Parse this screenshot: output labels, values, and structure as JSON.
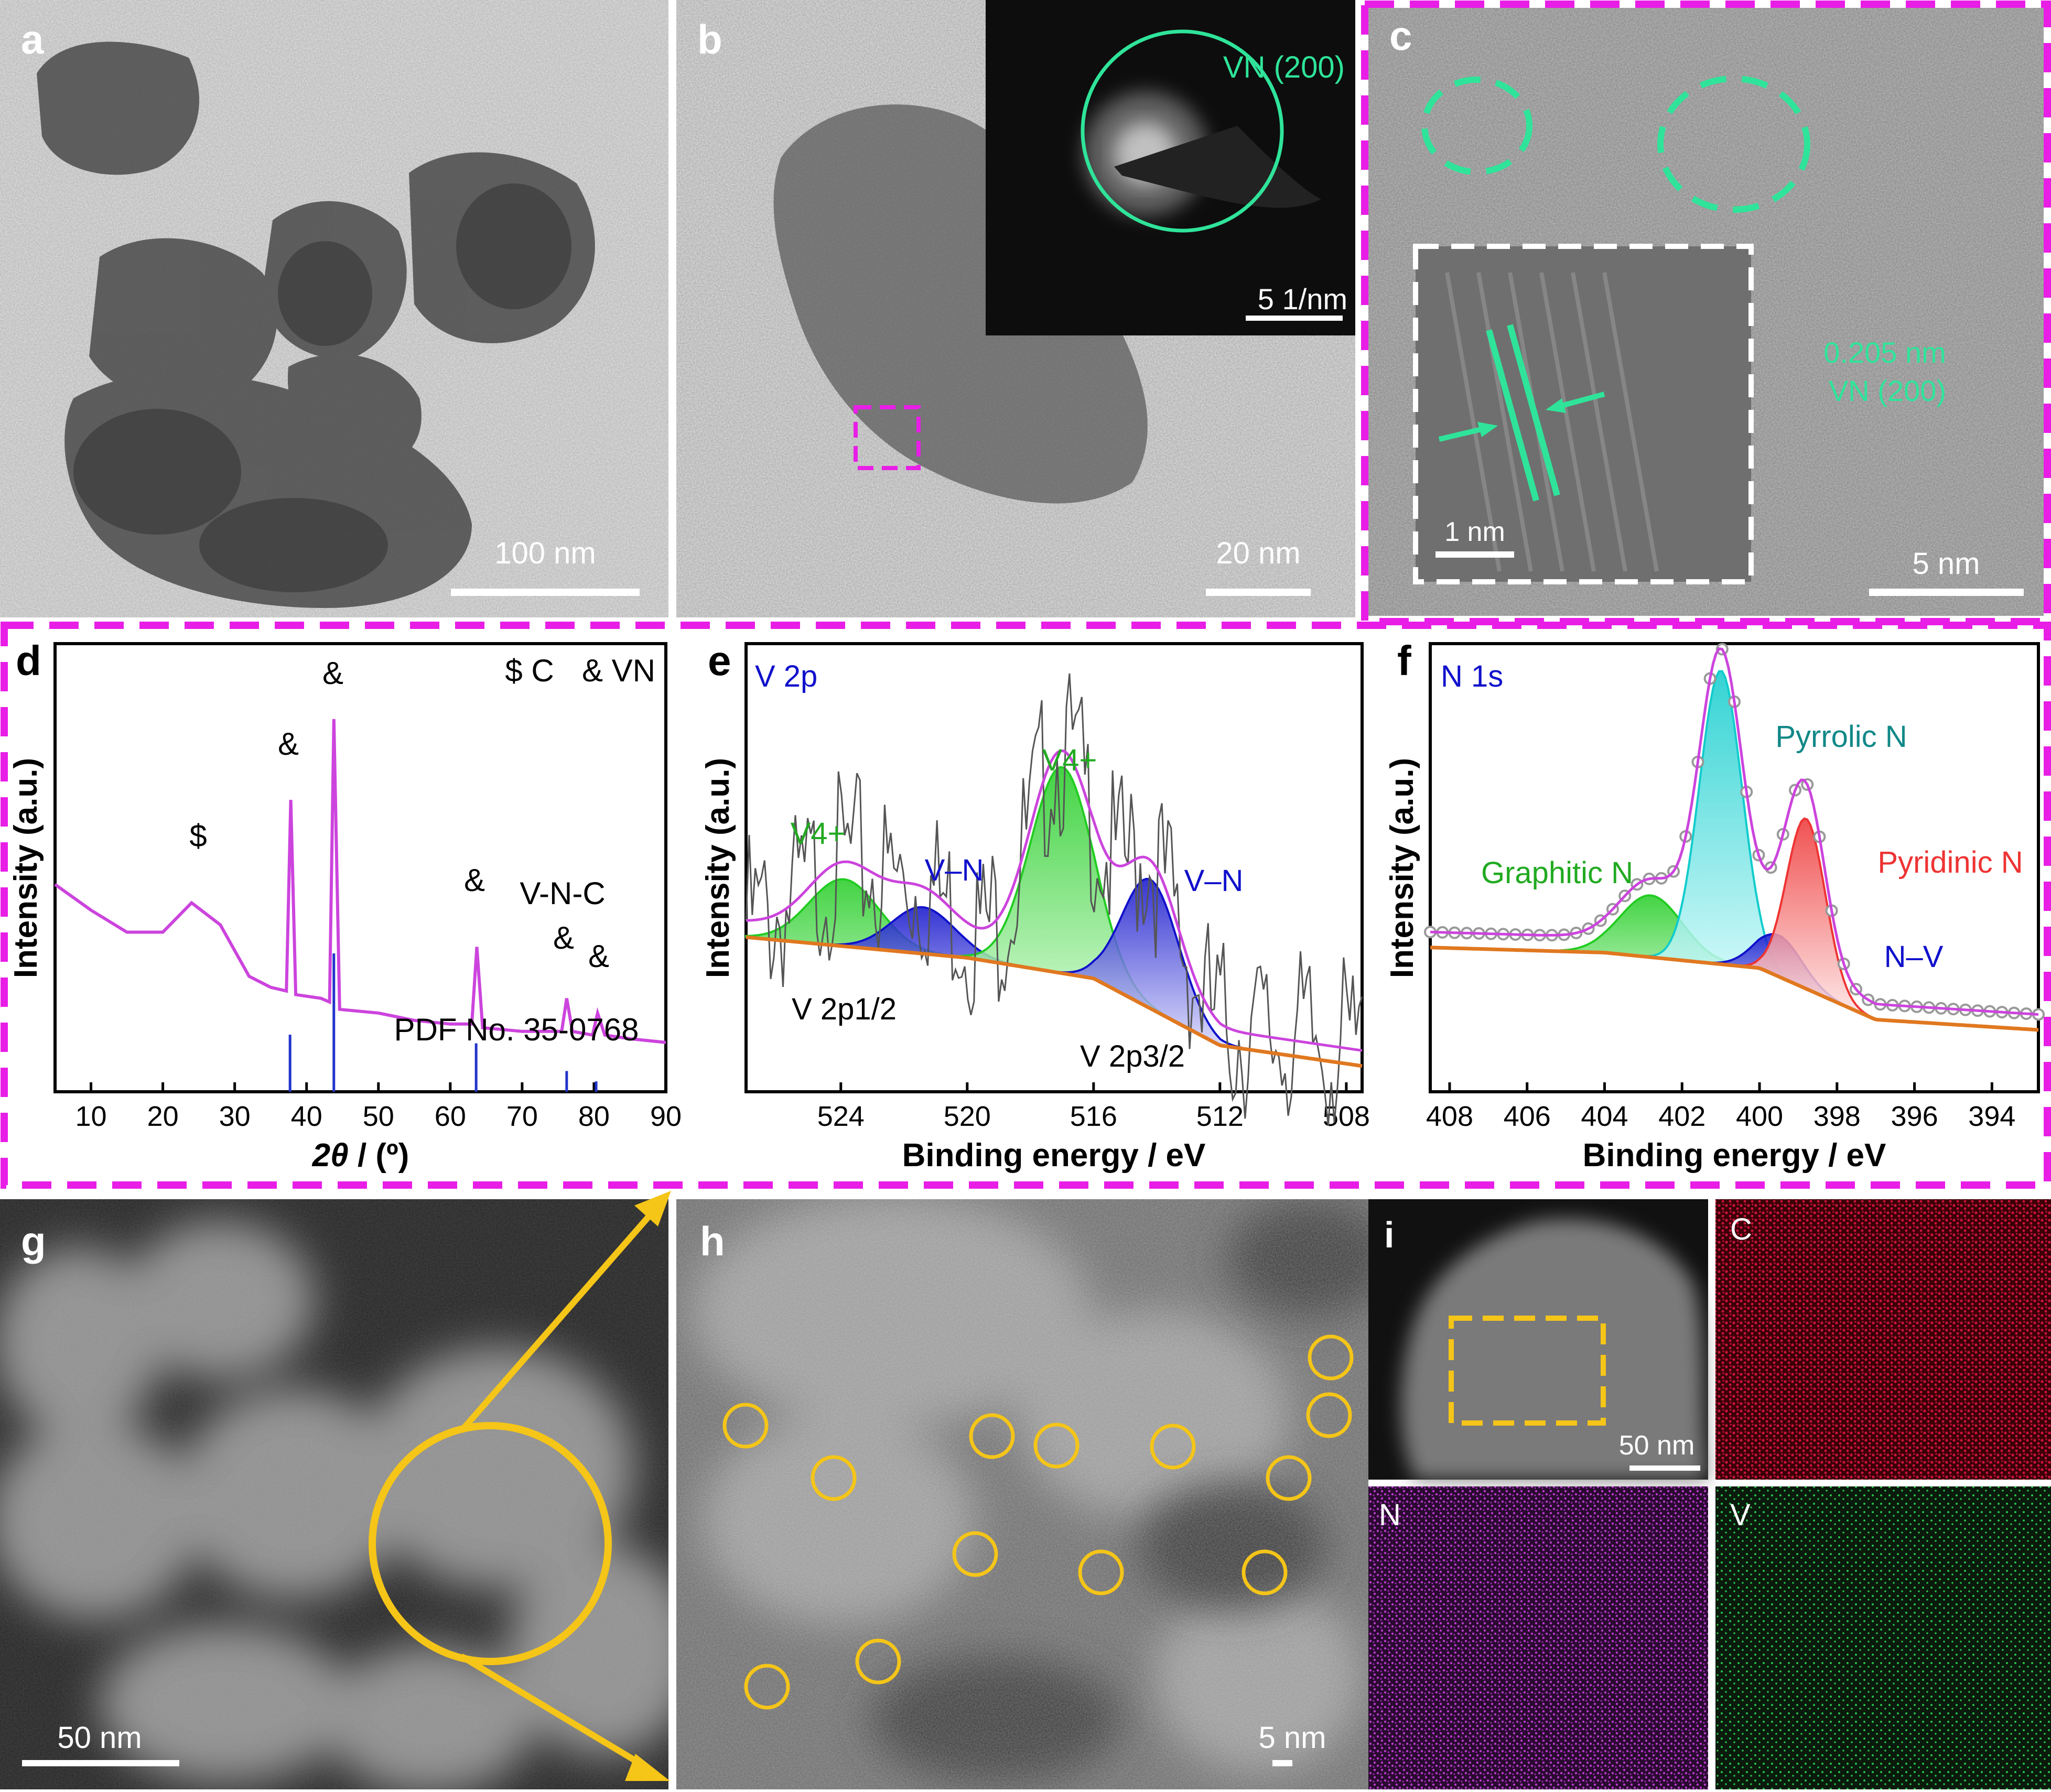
{
  "panels": {
    "a": {
      "letter": "a",
      "scale": "100 nm"
    },
    "b": {
      "letter": "b",
      "scale": "20 nm",
      "inset_label": "VN (200)",
      "inset_scale": "5 1/nm"
    },
    "c": {
      "letter": "c",
      "lattice_value": "0.205 nm",
      "lattice_plane": "VN (200)",
      "inset_scale": "1 nm",
      "scale": "5 nm"
    },
    "g": {
      "letter": "g",
      "scale": "50 nm"
    },
    "h": {
      "letter": "h",
      "scale": "5 nm"
    },
    "i": {
      "letter": "i",
      "scale": "50 nm"
    },
    "maps": {
      "c": "C",
      "n": "N",
      "v": "V"
    }
  },
  "colors": {
    "frame_magenta": "#e81ee6",
    "vn_green": "#2fe49a",
    "yellow": "#f5c518",
    "xrd_line": "#cc44dd",
    "pdf_bar": "#2233cc",
    "map_c": "#d0143c",
    "map_n": "#b53cc8",
    "map_v": "#28c44c"
  },
  "chart_data": [
    {
      "panel": "d",
      "type": "line",
      "xlabel": "2θ / (º)",
      "ylabel": "Intensity (a.u.)",
      "xlim": [
        5,
        90
      ],
      "x_ticks": [
        10,
        20,
        30,
        40,
        50,
        60,
        70,
        80,
        90
      ],
      "legend_text": [
        "$  C",
        "& VN"
      ],
      "annotations": [
        "&",
        "&",
        "$",
        "&",
        "V-N-C",
        "&",
        "&",
        "PDF No. 35-0768"
      ],
      "series": [
        {
          "x": [
            5,
            10,
            15,
            20,
            24,
            28,
            32,
            35,
            37.2,
            37.8,
            38.5,
            42,
            43.2,
            43.8,
            44.6,
            50,
            55,
            60,
            63.0,
            63.7,
            64.5,
            70,
            75.5,
            76.2,
            77,
            79.8,
            80.5,
            81.5,
            85,
            90
          ],
          "y": [
            0.55,
            0.48,
            0.42,
            0.42,
            0.5,
            0.44,
            0.3,
            0.27,
            0.26,
            0.78,
            0.25,
            0.24,
            0.23,
            1.0,
            0.21,
            0.2,
            0.18,
            0.17,
            0.17,
            0.38,
            0.16,
            0.15,
            0.15,
            0.24,
            0.15,
            0.14,
            0.2,
            0.14,
            0.13,
            0.12
          ]
        }
      ],
      "reference_bars": {
        "name": "PDF No. 35-0768",
        "x": [
          37.7,
          43.8,
          63.6,
          76.2,
          80.3
        ],
        "y": [
          0.33,
          0.8,
          0.28,
          0.12,
          0.06
        ]
      }
    },
    {
      "panel": "e",
      "type": "line",
      "title": "V 2p",
      "xlabel": "Binding energy / eV",
      "ylabel": "Intensity (a.u.)",
      "xlim": [
        527,
        507.5
      ],
      "x_ticks": [
        524,
        520,
        516,
        512,
        508
      ],
      "annotations": [
        "V4+",
        "V–N",
        "V4+",
        "V–N",
        "V 2p1/2",
        "V 2p3/2"
      ],
      "peaks": [
        {
          "name": "V4+ (2p1/2)",
          "center": 523.9,
          "height": 0.13,
          "width": 1.1,
          "color": "#22cc22"
        },
        {
          "name": "V–N (2p1/2)",
          "center": 521.4,
          "height": 0.09,
          "width": 1.0,
          "color": "#1111cc"
        },
        {
          "name": "V4+ (2p3/2)",
          "center": 517.0,
          "height": 0.4,
          "width": 1.0,
          "color": "#22cc22"
        },
        {
          "name": "V–N (2p3/2)",
          "center": 514.2,
          "height": 0.25,
          "width": 0.9,
          "color": "#1111cc"
        }
      ],
      "background": {
        "x": [
          527,
          520,
          516,
          512,
          507.5
        ],
        "y": [
          0.3,
          0.26,
          0.22,
          0.09,
          0.05
        ]
      }
    },
    {
      "panel": "f",
      "type": "line",
      "title": "N 1s",
      "xlabel": "Binding energy / eV",
      "ylabel": "Intensity (a.u.)",
      "xlim": [
        408.5,
        392.8
      ],
      "x_ticks": [
        408,
        406,
        404,
        402,
        400,
        398,
        396,
        394
      ],
      "annotations": [
        "Pyrrolic N",
        "Graphitic  N",
        "Pyridinic N",
        "N–V"
      ],
      "peaks": [
        {
          "name": "Graphitic N",
          "center": 402.8,
          "height": 0.12,
          "width": 0.8,
          "color": "#22cc22"
        },
        {
          "name": "Pyrrolic N",
          "center": 401.0,
          "height": 0.57,
          "width": 0.55,
          "color": "#11cccc"
        },
        {
          "name": "N–V",
          "center": 399.5,
          "height": 0.08,
          "width": 0.6,
          "color": "#1111cc"
        },
        {
          "name": "Pyridinic N",
          "center": 398.8,
          "height": 0.33,
          "width": 0.5,
          "color": "#ee3333"
        }
      ],
      "background": {
        "x": [
          408.5,
          404,
          400,
          397,
          392.8
        ],
        "y": [
          0.28,
          0.27,
          0.24,
          0.14,
          0.12
        ]
      }
    }
  ]
}
